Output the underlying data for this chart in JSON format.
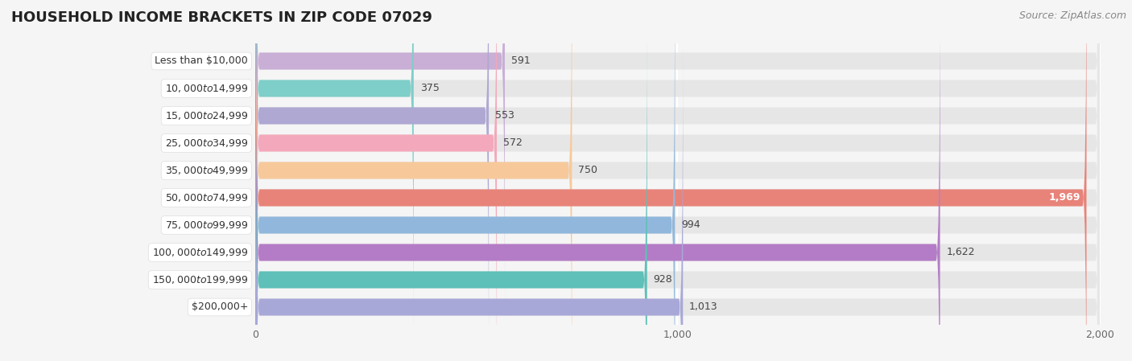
{
  "title": "HOUSEHOLD INCOME BRACKETS IN ZIP CODE 07029",
  "source": "Source: ZipAtlas.com",
  "categories": [
    "Less than $10,000",
    "$10,000 to $14,999",
    "$15,000 to $24,999",
    "$25,000 to $34,999",
    "$35,000 to $49,999",
    "$50,000 to $74,999",
    "$75,000 to $99,999",
    "$100,000 to $149,999",
    "$150,000 to $199,999",
    "$200,000+"
  ],
  "values": [
    591,
    375,
    553,
    572,
    750,
    1969,
    994,
    1622,
    928,
    1013
  ],
  "bar_colors": [
    "#c9aed6",
    "#7ecec9",
    "#aea8d3",
    "#f4a8bb",
    "#f7c99a",
    "#e8837a",
    "#91b8dc",
    "#b47cc6",
    "#5ec0b8",
    "#a8a8d8"
  ],
  "bg_color": "#f5f5f5",
  "bar_bg_color": "#e6e6e6",
  "xlim": [
    0,
    2050
  ],
  "data_max": 2000,
  "xticks": [
    0,
    1000,
    2000
  ],
  "title_fontsize": 13,
  "label_fontsize": 9,
  "value_fontsize": 9,
  "source_fontsize": 9
}
